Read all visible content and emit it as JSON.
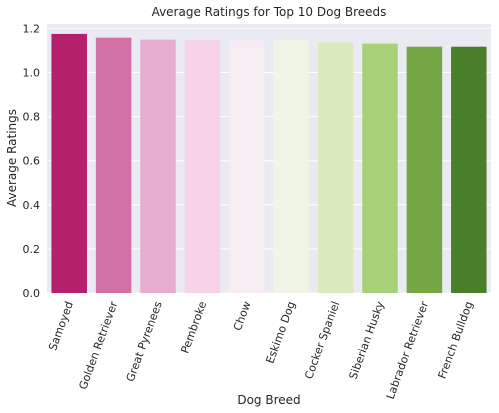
{
  "chart_data": {
    "type": "bar",
    "title": "Average Ratings for Top 10 Dog Breeds",
    "xlabel": "Dog Breed",
    "ylabel": "Average Ratings",
    "categories": [
      "Samoyed",
      "Golden Retriever",
      "Great Pyrenees",
      "Pembroke",
      "Chow",
      "Eskimo Dog",
      "Cocker Spaniel",
      "Siberian Husky",
      "Labrador Retriever",
      "French Bulldog"
    ],
    "values": [
      1.175,
      1.158,
      1.149,
      1.146,
      1.146,
      1.146,
      1.136,
      1.131,
      1.117,
      1.117
    ],
    "ylim": [
      0,
      1.22
    ],
    "yticks": [
      0.0,
      0.2,
      0.4,
      0.6,
      0.8,
      1.0,
      1.2
    ],
    "ytick_labels": [
      "0.0",
      "0.2",
      "0.4",
      "0.6",
      "0.8",
      "1.0",
      "1.2"
    ],
    "grid": true,
    "colors": [
      "#b5206d",
      "#d070a5",
      "#e6adcf",
      "#f6d3e6",
      "#f8edf3",
      "#f0f5e6",
      "#d9ebbe",
      "#a6d178",
      "#74a844",
      "#4a7f2a"
    ],
    "background": "#eaeaf2",
    "grid_color": "#ffffff"
  }
}
